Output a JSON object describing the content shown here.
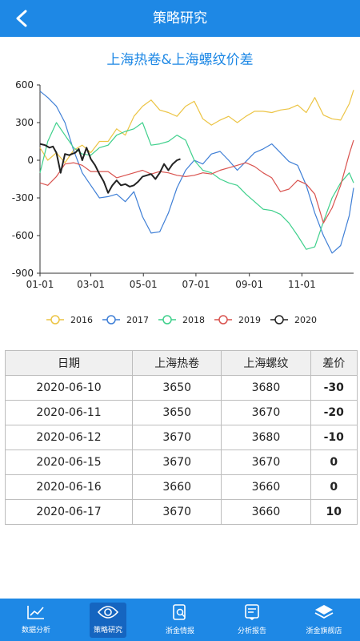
{
  "header": {
    "title": "策略研究",
    "back_icon": "chevron-left-icon"
  },
  "chart_title": "上海热卷&上海螺纹价差",
  "chart_data": {
    "type": "line",
    "title": "上海热卷&上海螺纹价差",
    "ylim": [
      -900,
      600
    ],
    "yticks": [
      600,
      300,
      0,
      -300,
      -600,
      -900
    ],
    "xticks": [
      "01-01",
      "03-01",
      "05-01",
      "07-01",
      "09-01",
      "11-01"
    ],
    "x_day_range": [
      1,
      365
    ],
    "grid": false,
    "legend": "bottom",
    "series": [
      {
        "name": "2016",
        "color": "#ecc444",
        "x": [
          1,
          10,
          20,
          30,
          40,
          50,
          60,
          70,
          80,
          90,
          100,
          110,
          120,
          130,
          140,
          150,
          160,
          170,
          180,
          190,
          200,
          210,
          220,
          230,
          240,
          250,
          260,
          270,
          280,
          290,
          300,
          310,
          320,
          330,
          340,
          350,
          360,
          365
        ],
        "y": [
          100,
          0,
          60,
          -20,
          80,
          120,
          60,
          150,
          150,
          250,
          200,
          350,
          430,
          480,
          400,
          380,
          350,
          430,
          470,
          330,
          280,
          320,
          350,
          300,
          350,
          390,
          390,
          380,
          400,
          410,
          440,
          380,
          500,
          360,
          330,
          320,
          450,
          560
        ]
      },
      {
        "name": "2017",
        "color": "#3f7fd6",
        "x": [
          1,
          10,
          20,
          30,
          40,
          50,
          60,
          70,
          80,
          90,
          100,
          110,
          120,
          130,
          140,
          150,
          160,
          170,
          180,
          190,
          200,
          210,
          220,
          230,
          240,
          250,
          260,
          270,
          280,
          290,
          300,
          310,
          320,
          330,
          340,
          350,
          360,
          365
        ],
        "y": [
          550,
          500,
          430,
          300,
          80,
          -100,
          -200,
          -300,
          -290,
          -270,
          -330,
          -250,
          -450,
          -580,
          -570,
          -420,
          -220,
          -80,
          0,
          -30,
          50,
          70,
          0,
          -80,
          -10,
          60,
          90,
          130,
          60,
          -10,
          -40,
          -200,
          -420,
          -600,
          -740,
          -680,
          -440,
          -220
        ]
      },
      {
        "name": "2018",
        "color": "#3fd08c",
        "x": [
          1,
          10,
          20,
          30,
          40,
          50,
          60,
          70,
          80,
          90,
          100,
          110,
          120,
          130,
          140,
          150,
          160,
          170,
          180,
          190,
          200,
          210,
          220,
          230,
          240,
          250,
          260,
          270,
          280,
          290,
          300,
          310,
          320,
          330,
          340,
          350,
          360,
          365
        ],
        "y": [
          -100,
          150,
          300,
          200,
          100,
          50,
          40,
          100,
          120,
          200,
          230,
          250,
          300,
          120,
          130,
          150,
          200,
          160,
          0,
          -80,
          -100,
          -150,
          -180,
          -200,
          -270,
          -330,
          -390,
          -400,
          -430,
          -500,
          -600,
          -710,
          -690,
          -490,
          -300,
          -180,
          -100,
          -180
        ]
      },
      {
        "name": "2019",
        "color": "#d9534f",
        "x": [
          1,
          10,
          20,
          30,
          40,
          50,
          60,
          70,
          80,
          90,
          100,
          110,
          120,
          130,
          140,
          150,
          160,
          170,
          180,
          190,
          200,
          210,
          220,
          230,
          240,
          250,
          260,
          270,
          280,
          290,
          300,
          310,
          320,
          330,
          340,
          350,
          360,
          365
        ],
        "y": [
          -180,
          -200,
          -130,
          -30,
          -20,
          -40,
          -90,
          -90,
          -90,
          -140,
          -120,
          -100,
          -80,
          -110,
          -90,
          -100,
          -120,
          -130,
          -120,
          -100,
          -110,
          -80,
          -60,
          -40,
          -20,
          -50,
          -100,
          -140,
          -250,
          -230,
          -160,
          -190,
          -270,
          -500,
          -380,
          -200,
          50,
          160
        ]
      },
      {
        "name": "2020",
        "color": "#222222",
        "x": [
          1,
          7,
          12,
          16,
          20,
          25,
          30,
          35,
          38,
          42,
          46,
          50,
          55,
          60,
          65,
          70,
          75,
          80,
          85,
          90,
          95,
          100,
          105,
          110,
          115,
          120,
          125,
          130,
          135,
          140,
          145,
          150,
          155,
          160,
          164
        ],
        "y": [
          130,
          120,
          100,
          110,
          60,
          -100,
          50,
          40,
          50,
          60,
          90,
          0,
          100,
          10,
          -40,
          -110,
          -170,
          -260,
          -200,
          -160,
          -200,
          -190,
          -210,
          -200,
          -170,
          -130,
          -120,
          -110,
          -150,
          -100,
          -30,
          -80,
          -30,
          0,
          10
        ]
      }
    ]
  },
  "legend": [
    {
      "label": "2016",
      "color": "#ecc444"
    },
    {
      "label": "2017",
      "color": "#3f7fd6"
    },
    {
      "label": "2018",
      "color": "#3fd08c"
    },
    {
      "label": "2019",
      "color": "#d9534f"
    },
    {
      "label": "2020",
      "color": "#222222"
    }
  ],
  "table": {
    "columns": [
      "日期",
      "上海热卷",
      "上海螺纹",
      "差价"
    ],
    "rows": [
      [
        "2020-06-10",
        "3650",
        "3680",
        "-30"
      ],
      [
        "2020-06-11",
        "3650",
        "3670",
        "-20"
      ],
      [
        "2020-06-12",
        "3670",
        "3680",
        "-10"
      ],
      [
        "2020-06-15",
        "3670",
        "3670",
        "0"
      ],
      [
        "2020-06-16",
        "3660",
        "3660",
        "0"
      ],
      [
        "2020-06-17",
        "3670",
        "3660",
        "10"
      ]
    ]
  },
  "tabbar": {
    "items": [
      {
        "label": "数据分析",
        "icon": "trend-chart-icon",
        "active": false
      },
      {
        "label": "策略研究",
        "icon": "eye-icon",
        "active": true
      },
      {
        "label": "浙金情报",
        "icon": "document-search-icon",
        "active": false
      },
      {
        "label": "分析报告",
        "icon": "report-icon",
        "active": false
      },
      {
        "label": "浙金旗舰店",
        "icon": "store-icon",
        "active": false
      }
    ]
  }
}
